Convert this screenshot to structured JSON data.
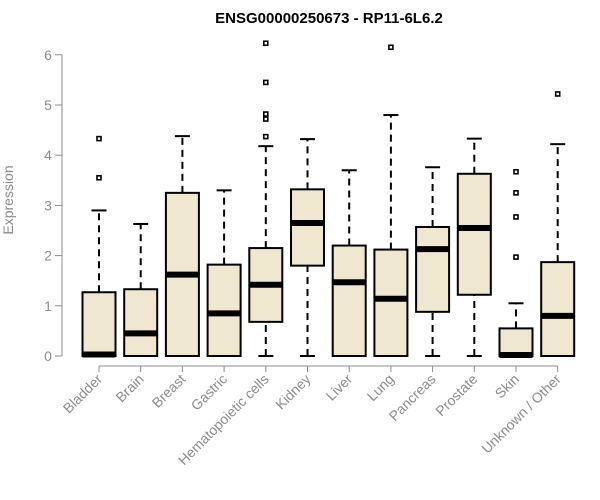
{
  "chart_data": {
    "type": "boxplot",
    "title": "ENSG00000250673 - RP11-6L6.2",
    "xlabel": "",
    "ylabel": "Expression",
    "ylim": [
      0,
      6.2
    ],
    "yticks": [
      0,
      1,
      2,
      3,
      4,
      5,
      6
    ],
    "grid": false,
    "categories": [
      "Bladder",
      "Brain",
      "Breast",
      "Gastric",
      "Hematopoietic cells",
      "Kidney",
      "Liver",
      "Lung",
      "Pancreas",
      "Prostate",
      "Skin",
      "Unknown / Other"
    ],
    "boxes": [
      {
        "category": "Bladder",
        "min": 0,
        "q1": 0,
        "median": 0.03,
        "q3": 1.27,
        "max": 2.9,
        "outliers": [
          3.55,
          4.33
        ]
      },
      {
        "category": "Brain",
        "min": 0,
        "q1": 0,
        "median": 0.45,
        "q3": 1.33,
        "max": 2.63,
        "outliers": []
      },
      {
        "category": "Breast",
        "min": 0,
        "q1": 0,
        "median": 1.62,
        "q3": 3.25,
        "max": 4.38,
        "outliers": []
      },
      {
        "category": "Gastric",
        "min": 0,
        "q1": 0,
        "median": 0.85,
        "q3": 1.82,
        "max": 3.3,
        "outliers": []
      },
      {
        "category": "Hematopoietic cells",
        "min": 0,
        "q1": 0.68,
        "median": 1.42,
        "q3": 2.15,
        "max": 4.18,
        "outliers": [
          4.37,
          4.72,
          4.82,
          5.45,
          6.23
        ]
      },
      {
        "category": "Kidney",
        "min": 0,
        "q1": 1.8,
        "median": 2.65,
        "q3": 3.32,
        "max": 4.32,
        "outliers": []
      },
      {
        "category": "Liver",
        "min": 0,
        "q1": 0,
        "median": 1.47,
        "q3": 2.2,
        "max": 3.7,
        "outliers": []
      },
      {
        "category": "Lung",
        "min": 0,
        "q1": 0,
        "median": 1.14,
        "q3": 2.12,
        "max": 4.8,
        "outliers": [
          6.15
        ]
      },
      {
        "category": "Pancreas",
        "min": 0,
        "q1": 0.88,
        "median": 2.13,
        "q3": 2.57,
        "max": 3.76,
        "outliers": []
      },
      {
        "category": "Prostate",
        "min": 0,
        "q1": 1.22,
        "median": 2.55,
        "q3": 3.63,
        "max": 4.33,
        "outliers": []
      },
      {
        "category": "Skin",
        "min": 0,
        "q1": 0,
        "median": 0.02,
        "q3": 0.55,
        "max": 1.05,
        "outliers": [
          1.97,
          2.77,
          3.25,
          3.67
        ]
      },
      {
        "category": "Unknown / Other",
        "min": 0,
        "q1": 0,
        "median": 0.8,
        "q3": 1.87,
        "max": 4.22,
        "outliers": [
          5.22
        ]
      }
    ],
    "colors": {
      "box_fill": "#efe7cf",
      "box_stroke": "#000000",
      "axis": "#8c8c8c"
    }
  }
}
